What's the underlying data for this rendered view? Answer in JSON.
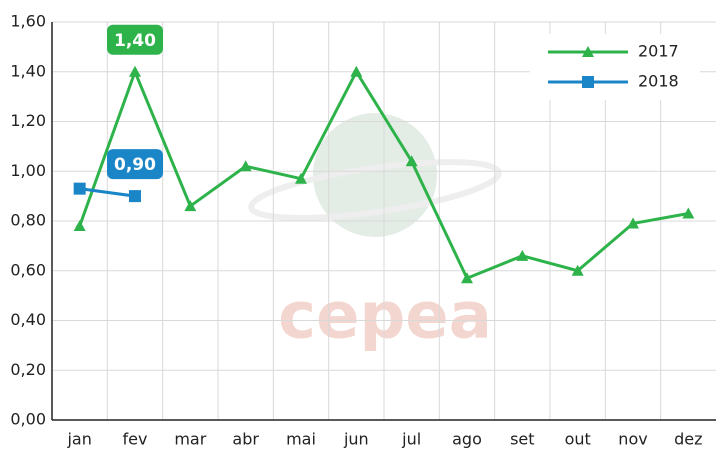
{
  "chart_data": {
    "type": "line",
    "categories": [
      "jan",
      "fev",
      "mar",
      "abr",
      "mai",
      "jun",
      "jul",
      "ago",
      "set",
      "out",
      "nov",
      "dez"
    ],
    "series": [
      {
        "name": "2017",
        "color": "#2db34a",
        "marker": "triangle",
        "values": [
          0.78,
          1.4,
          0.86,
          1.02,
          0.97,
          1.4,
          1.04,
          0.57,
          0.66,
          0.6,
          0.79,
          0.83
        ],
        "value_labels": [
          null,
          "1,40",
          null,
          null,
          null,
          null,
          null,
          null,
          null,
          null,
          null,
          null
        ]
      },
      {
        "name": "2018",
        "color": "#1a86c8",
        "marker": "square",
        "values": [
          0.93,
          0.9,
          null,
          null,
          null,
          null,
          null,
          null,
          null,
          null,
          null,
          null
        ],
        "value_labels": [
          null,
          "0,90",
          null,
          null,
          null,
          null,
          null,
          null,
          null,
          null,
          null,
          null
        ]
      }
    ],
    "ylim": [
      0,
      1.6
    ],
    "yticks": [
      {
        "value": 0,
        "label": "0,00"
      },
      {
        "value": 0.2,
        "label": "0,20"
      },
      {
        "value": 0.4,
        "label": "0,40"
      },
      {
        "value": 0.6,
        "label": "0,60"
      },
      {
        "value": 0.8,
        "label": "0,80"
      },
      {
        "value": 1.0,
        "label": "1,00"
      },
      {
        "value": 1.2,
        "label": "1,20"
      },
      {
        "value": 1.4,
        "label": "1,40"
      },
      {
        "value": 1.6,
        "label": "1,60"
      }
    ],
    "grid": true,
    "legend": "top-right",
    "watermark": "cepea"
  }
}
